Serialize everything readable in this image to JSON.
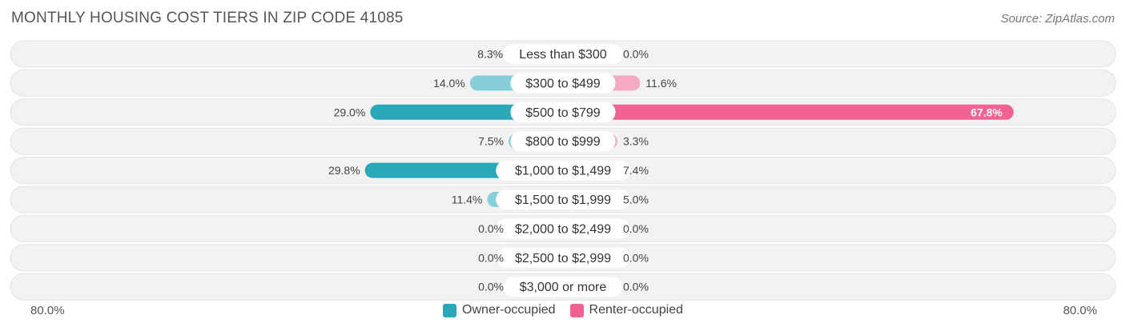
{
  "header": {
    "title": "MONTHLY HOUSING COST TIERS IN ZIP CODE 41085",
    "source": "Source: ZipAtlas.com"
  },
  "axis": {
    "left_label": "80.0%",
    "right_label": "80.0%"
  },
  "colors": {
    "owner_strong": "#2aa7b8",
    "owner_light": "#86cfd8",
    "renter_strong": "#f06292",
    "renter_light": "#f7a8c3",
    "row_bg": "#f2f2f2",
    "row_border": "#e3e3e3"
  },
  "chart_data": {
    "type": "bar",
    "orientation": "horizontal-diverging",
    "title": "MONTHLY HOUSING COST TIERS IN ZIP CODE 41085",
    "categories": [
      "Less than $300",
      "$300 to $499",
      "$500 to $799",
      "$800 to $999",
      "$1,000 to $1,499",
      "$1,500 to $1,999",
      "$2,000 to $2,499",
      "$2,500 to $2,999",
      "$3,000 or more"
    ],
    "series": [
      {
        "name": "Owner-occupied",
        "values": [
          8.3,
          14.0,
          29.0,
          7.5,
          29.8,
          11.4,
          0.0,
          0.0,
          0.0
        ],
        "labels": [
          "8.3%",
          "14.0%",
          "29.0%",
          "7.5%",
          "29.8%",
          "11.4%",
          "0.0%",
          "0.0%",
          "0.0%"
        ]
      },
      {
        "name": "Renter-occupied",
        "values": [
          0.0,
          11.6,
          67.8,
          3.3,
          7.4,
          5.0,
          0.0,
          0.0,
          0.0
        ],
        "labels": [
          "0.0%",
          "11.6%",
          "67.8%",
          "3.3%",
          "7.4%",
          "5.0%",
          "0.0%",
          "0.0%",
          "0.0%"
        ]
      }
    ],
    "xlim": [
      -80,
      80
    ],
    "legend_position": "bottom-center"
  }
}
